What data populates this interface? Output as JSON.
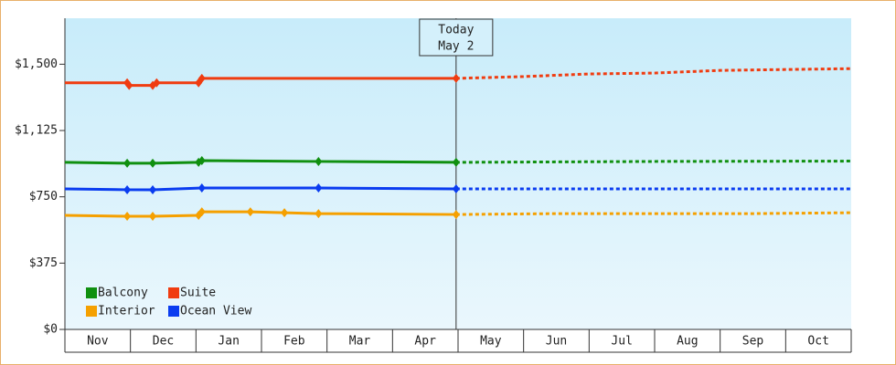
{
  "chart_data": {
    "type": "line",
    "xlim": [
      0,
      12
    ],
    "ylim": [
      0,
      1760
    ],
    "yticks": [
      {
        "value": 0,
        "label": "$0"
      },
      {
        "value": 375,
        "label": "$375"
      },
      {
        "value": 750,
        "label": "$750"
      },
      {
        "value": 1125,
        "label": "$1,125"
      },
      {
        "value": 1500,
        "label": "$1,500"
      }
    ],
    "categories": [
      "Nov",
      "Dec",
      "Jan",
      "Feb",
      "Mar",
      "Apr",
      "May",
      "Jun",
      "Jul",
      "Aug",
      "Sep",
      "Oct"
    ],
    "annotation": {
      "x": 5.97,
      "lines": [
        "Today",
        "May 2"
      ]
    },
    "series": [
      {
        "name": "Balcony",
        "color": "#109010",
        "x": [
          0,
          0.95,
          1.34,
          2.04,
          2.09,
          3.87,
          5.97
        ],
        "values": [
          945,
          940,
          940,
          945,
          955,
          950,
          945
        ],
        "projection": {
          "x": [
            5.97,
            9,
            12
          ],
          "values": [
            945,
            950,
            952
          ]
        }
      },
      {
        "name": "Suite",
        "color": "#f03c10",
        "x": [
          0,
          0.95,
          0.98,
          1.34,
          1.4,
          2.04,
          2.09,
          5.97
        ],
        "values": [
          1395,
          1395,
          1380,
          1380,
          1395,
          1395,
          1420,
          1420
        ],
        "projection": {
          "x": [
            5.97,
            7,
            8,
            9,
            10,
            12
          ],
          "values": [
            1420,
            1430,
            1445,
            1450,
            1465,
            1475
          ]
        }
      },
      {
        "name": "Interior",
        "color": "#f5a000",
        "x": [
          0,
          0.95,
          1.34,
          2.04,
          2.09,
          2.83,
          3.35,
          3.87,
          5.97
        ],
        "values": [
          645,
          640,
          640,
          645,
          665,
          665,
          660,
          655,
          650
        ],
        "projection": {
          "x": [
            5.97,
            7.5,
            10.5,
            12
          ],
          "values": [
            650,
            655,
            655,
            660
          ]
        }
      },
      {
        "name": "Ocean View",
        "color": "#0a3cf0",
        "x": [
          0,
          0.95,
          1.34,
          2.09,
          3.87,
          5.97
        ],
        "values": [
          795,
          790,
          790,
          800,
          800,
          795
        ],
        "projection": {
          "x": [
            5.97,
            12
          ],
          "values": [
            795,
            795
          ]
        }
      }
    ]
  }
}
